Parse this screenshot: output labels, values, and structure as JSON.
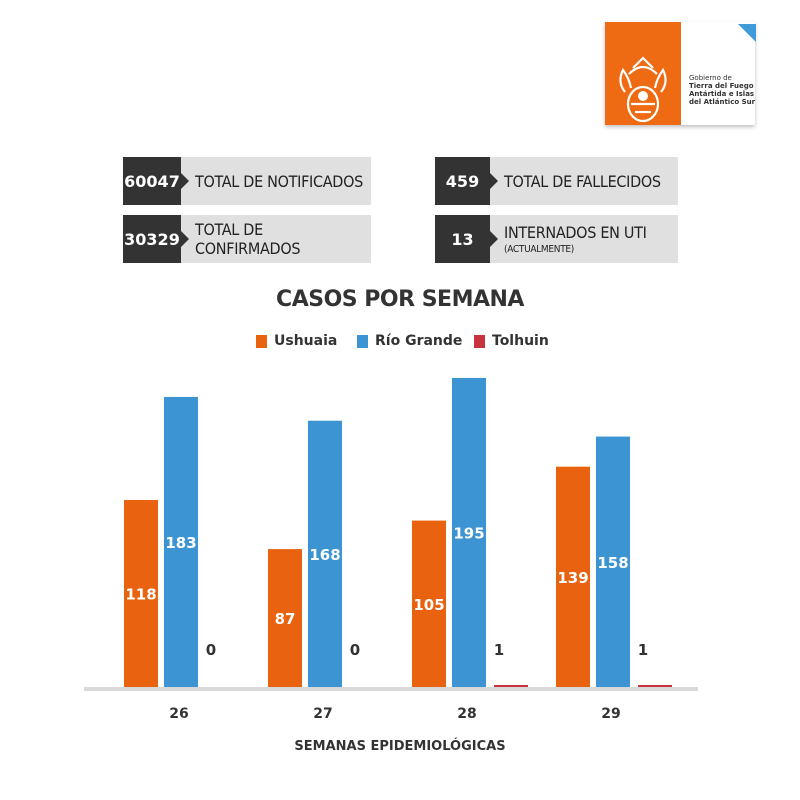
{
  "logo": {
    "icon": "provincial-seal-icon",
    "text_line1": "Gobierno de",
    "text_line2": "Tierra del Fuego",
    "text_line3": "Antártida e Islas",
    "text_line4": "del Atlántico Sur"
  },
  "stats": {
    "notificados": {
      "value": "60047",
      "label": "TOTAL DE NOTIFICADOS"
    },
    "confirmados": {
      "value": "30329",
      "label": "TOTAL DE CONFIRMADOS"
    },
    "fallecidos": {
      "value": "459",
      "label": "TOTAL DE FALLECIDOS"
    },
    "internados": {
      "value": "13",
      "label": "INTERNADOS EN UTI",
      "sublabel": "(ACTUALMENTE)"
    }
  },
  "colors": {
    "ushuaia": "#e8620f",
    "rio_grande": "#3d94d2",
    "tolhuin": "#c8323e"
  },
  "chart_data": {
    "type": "bar",
    "title": "CASOS POR SEMANA",
    "xlabel": "SEMANAS EPIDEMIOLÓGICAS",
    "ylabel": "",
    "categories": [
      "26",
      "27",
      "28",
      "29"
    ],
    "series": [
      {
        "name": "Ushuaia",
        "values": [
          118,
          87,
          105,
          139
        ]
      },
      {
        "name": "Río Grande",
        "values": [
          183,
          168,
          195,
          158
        ]
      },
      {
        "name": "Tolhuin",
        "values": [
          0,
          0,
          1,
          1
        ]
      }
    ],
    "ylim": [
      0,
      200
    ],
    "grid": false,
    "legend": "top-center"
  }
}
